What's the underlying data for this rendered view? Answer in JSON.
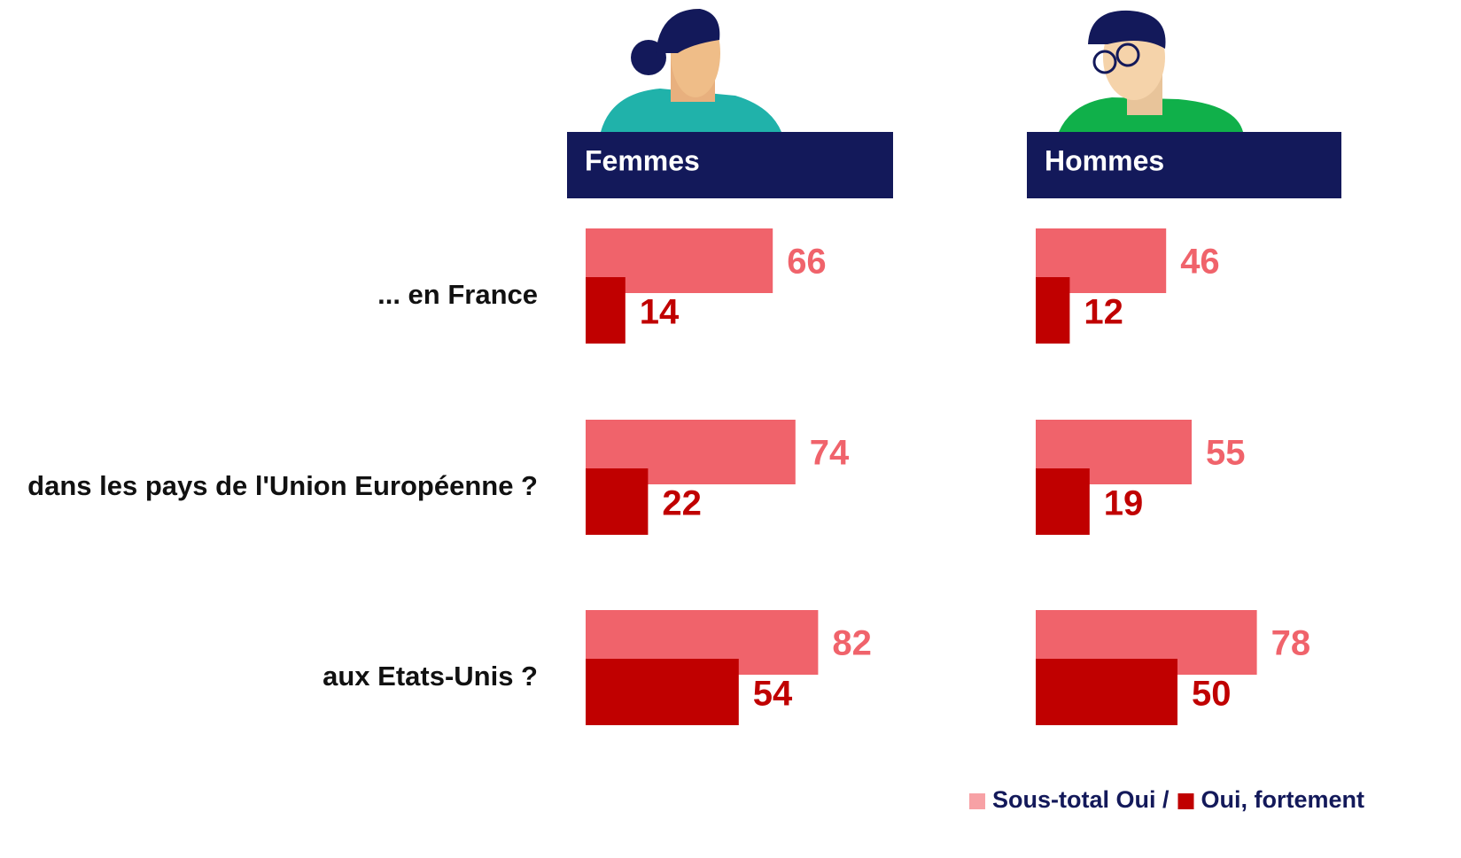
{
  "chart_data": {
    "type": "bar",
    "categories": [
      "... en France",
      "dans les pays de l'Union Européenne ?",
      "aux Etats-Unis ?"
    ],
    "legend": [
      {
        "label": "Sous-total Oui /",
        "color": "#f0636b"
      },
      {
        "label": "Oui, fortement",
        "color": "#c00000"
      }
    ],
    "panels": [
      {
        "title": "Femmes",
        "subtotal": [
          66,
          74,
          82
        ],
        "strong": [
          14,
          22,
          54
        ]
      },
      {
        "title": "Hommes",
        "subtotal": [
          46,
          55,
          78
        ],
        "strong": [
          12,
          19,
          50
        ]
      }
    ]
  }
}
